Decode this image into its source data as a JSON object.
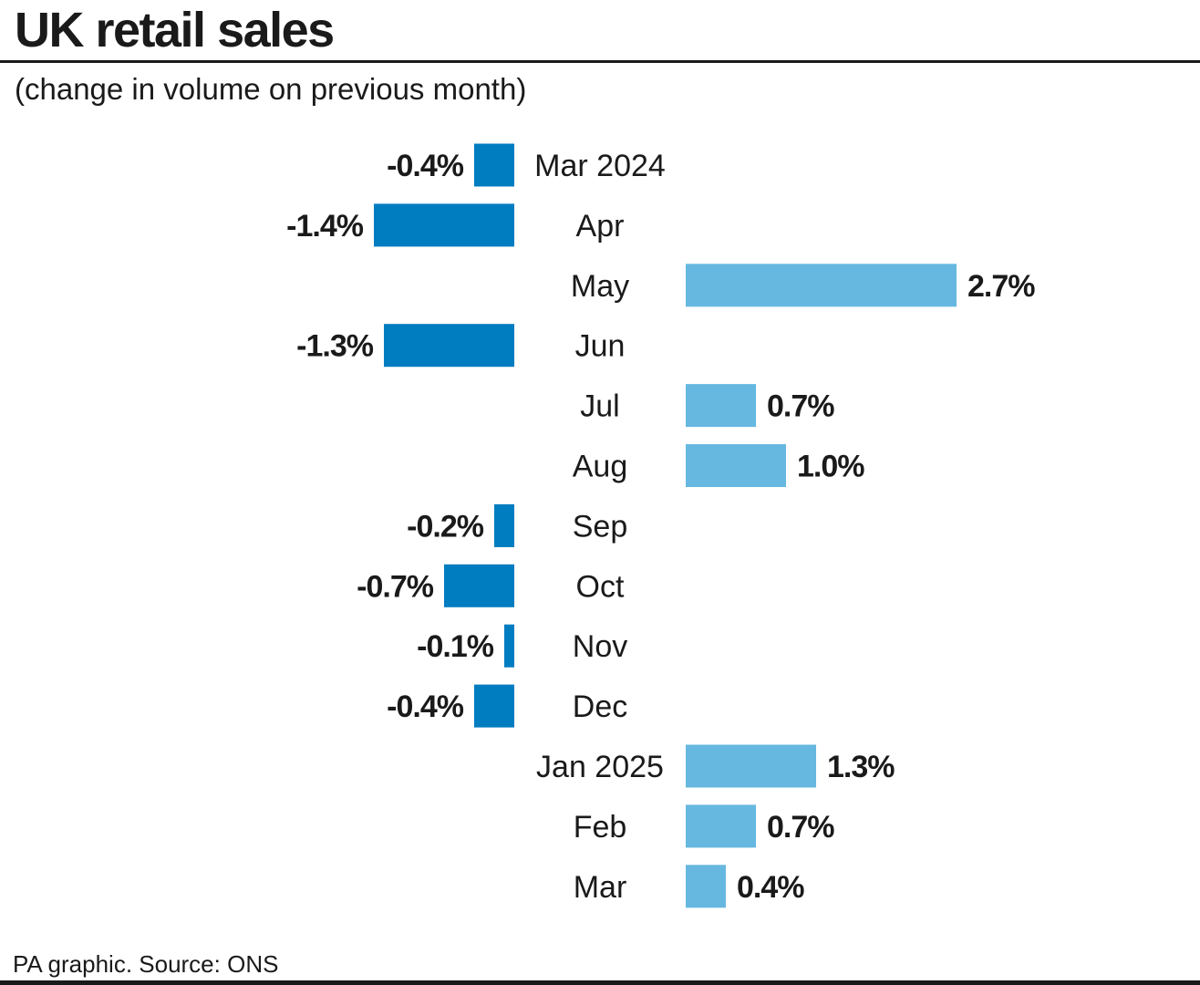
{
  "header": {
    "title": "UK retail sales",
    "subtitle": "(change in volume on previous month)"
  },
  "footer": {
    "credit": "PA graphic. Source: ONS"
  },
  "colors": {
    "negative": "#007cc0",
    "positive": "#66b8e0",
    "text": "#1a1a1a"
  },
  "chart_data": {
    "type": "bar",
    "orientation": "horizontal",
    "title": "UK retail sales",
    "subtitle": "(change in volume on previous month)",
    "unit": "%",
    "categories": [
      "Mar 2024",
      "Apr",
      "May",
      "Jun",
      "Jul",
      "Aug",
      "Sep",
      "Oct",
      "Nov",
      "Dec",
      "Jan 2025",
      "Feb",
      "Mar"
    ],
    "values": [
      -0.4,
      -1.4,
      2.7,
      -1.3,
      0.7,
      1.0,
      -0.2,
      -0.7,
      -0.1,
      -0.4,
      1.3,
      0.7,
      0.4
    ],
    "labels": [
      "-0.4%",
      "-1.4%",
      "2.7%",
      "-1.3%",
      "0.7%",
      "1.0%",
      "-0.2%",
      "-0.7%",
      "-0.1%",
      "-0.4%",
      "1.3%",
      "0.7%",
      "0.4%"
    ],
    "grid": false,
    "legend": "none"
  }
}
